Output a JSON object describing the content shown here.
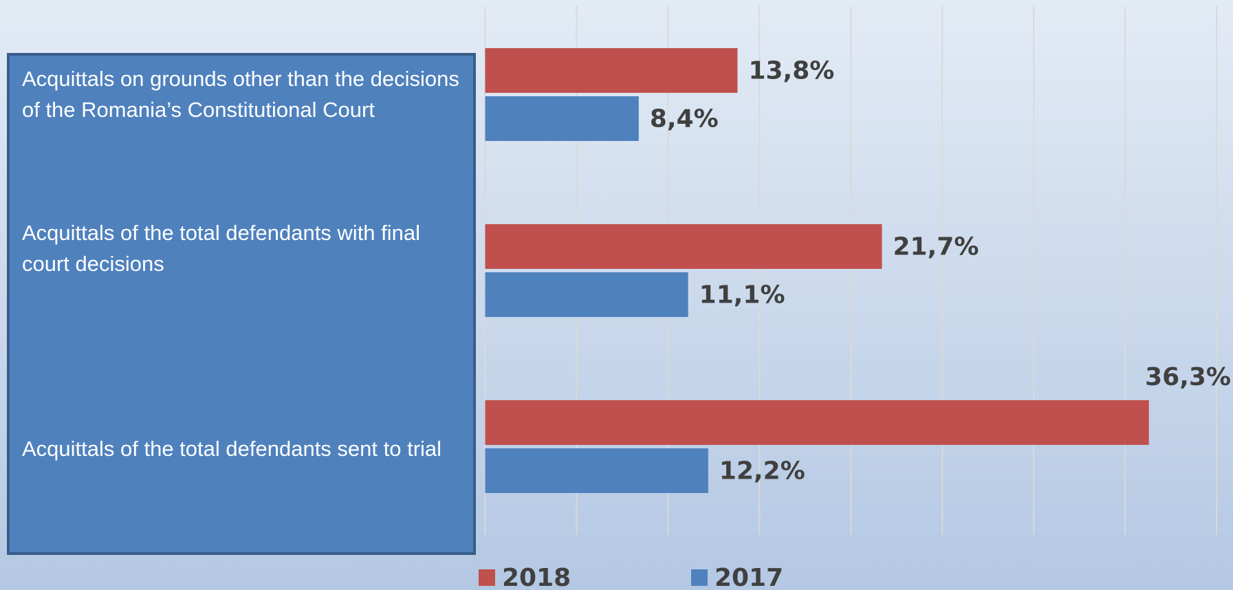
{
  "chart_data": {
    "type": "hbar",
    "categories": [
      "Acquittals on grounds other than the decisions of  the Romania’s Constitutional Court",
      "Acquittals of the total defendants with final court decisions",
      "Acquittals of the total defendants sent to trial"
    ],
    "series": [
      {
        "name": "2018",
        "color": "#c0504d",
        "values": [
          13.8,
          21.7,
          36.3
        ],
        "value_labels": [
          "13,8%",
          "21,7%",
          "36,3%"
        ]
      },
      {
        "name": "2017",
        "color": "#4f81bd",
        "values": [
          8.4,
          11.1,
          12.2
        ],
        "value_labels": [
          "8,4%",
          "11,1%",
          "12,2%"
        ]
      }
    ],
    "xlim": [
      0,
      40
    ],
    "xticks": [
      0,
      5,
      10,
      15,
      20,
      25,
      30,
      35,
      40
    ],
    "grid": true,
    "legend": "bottom"
  }
}
